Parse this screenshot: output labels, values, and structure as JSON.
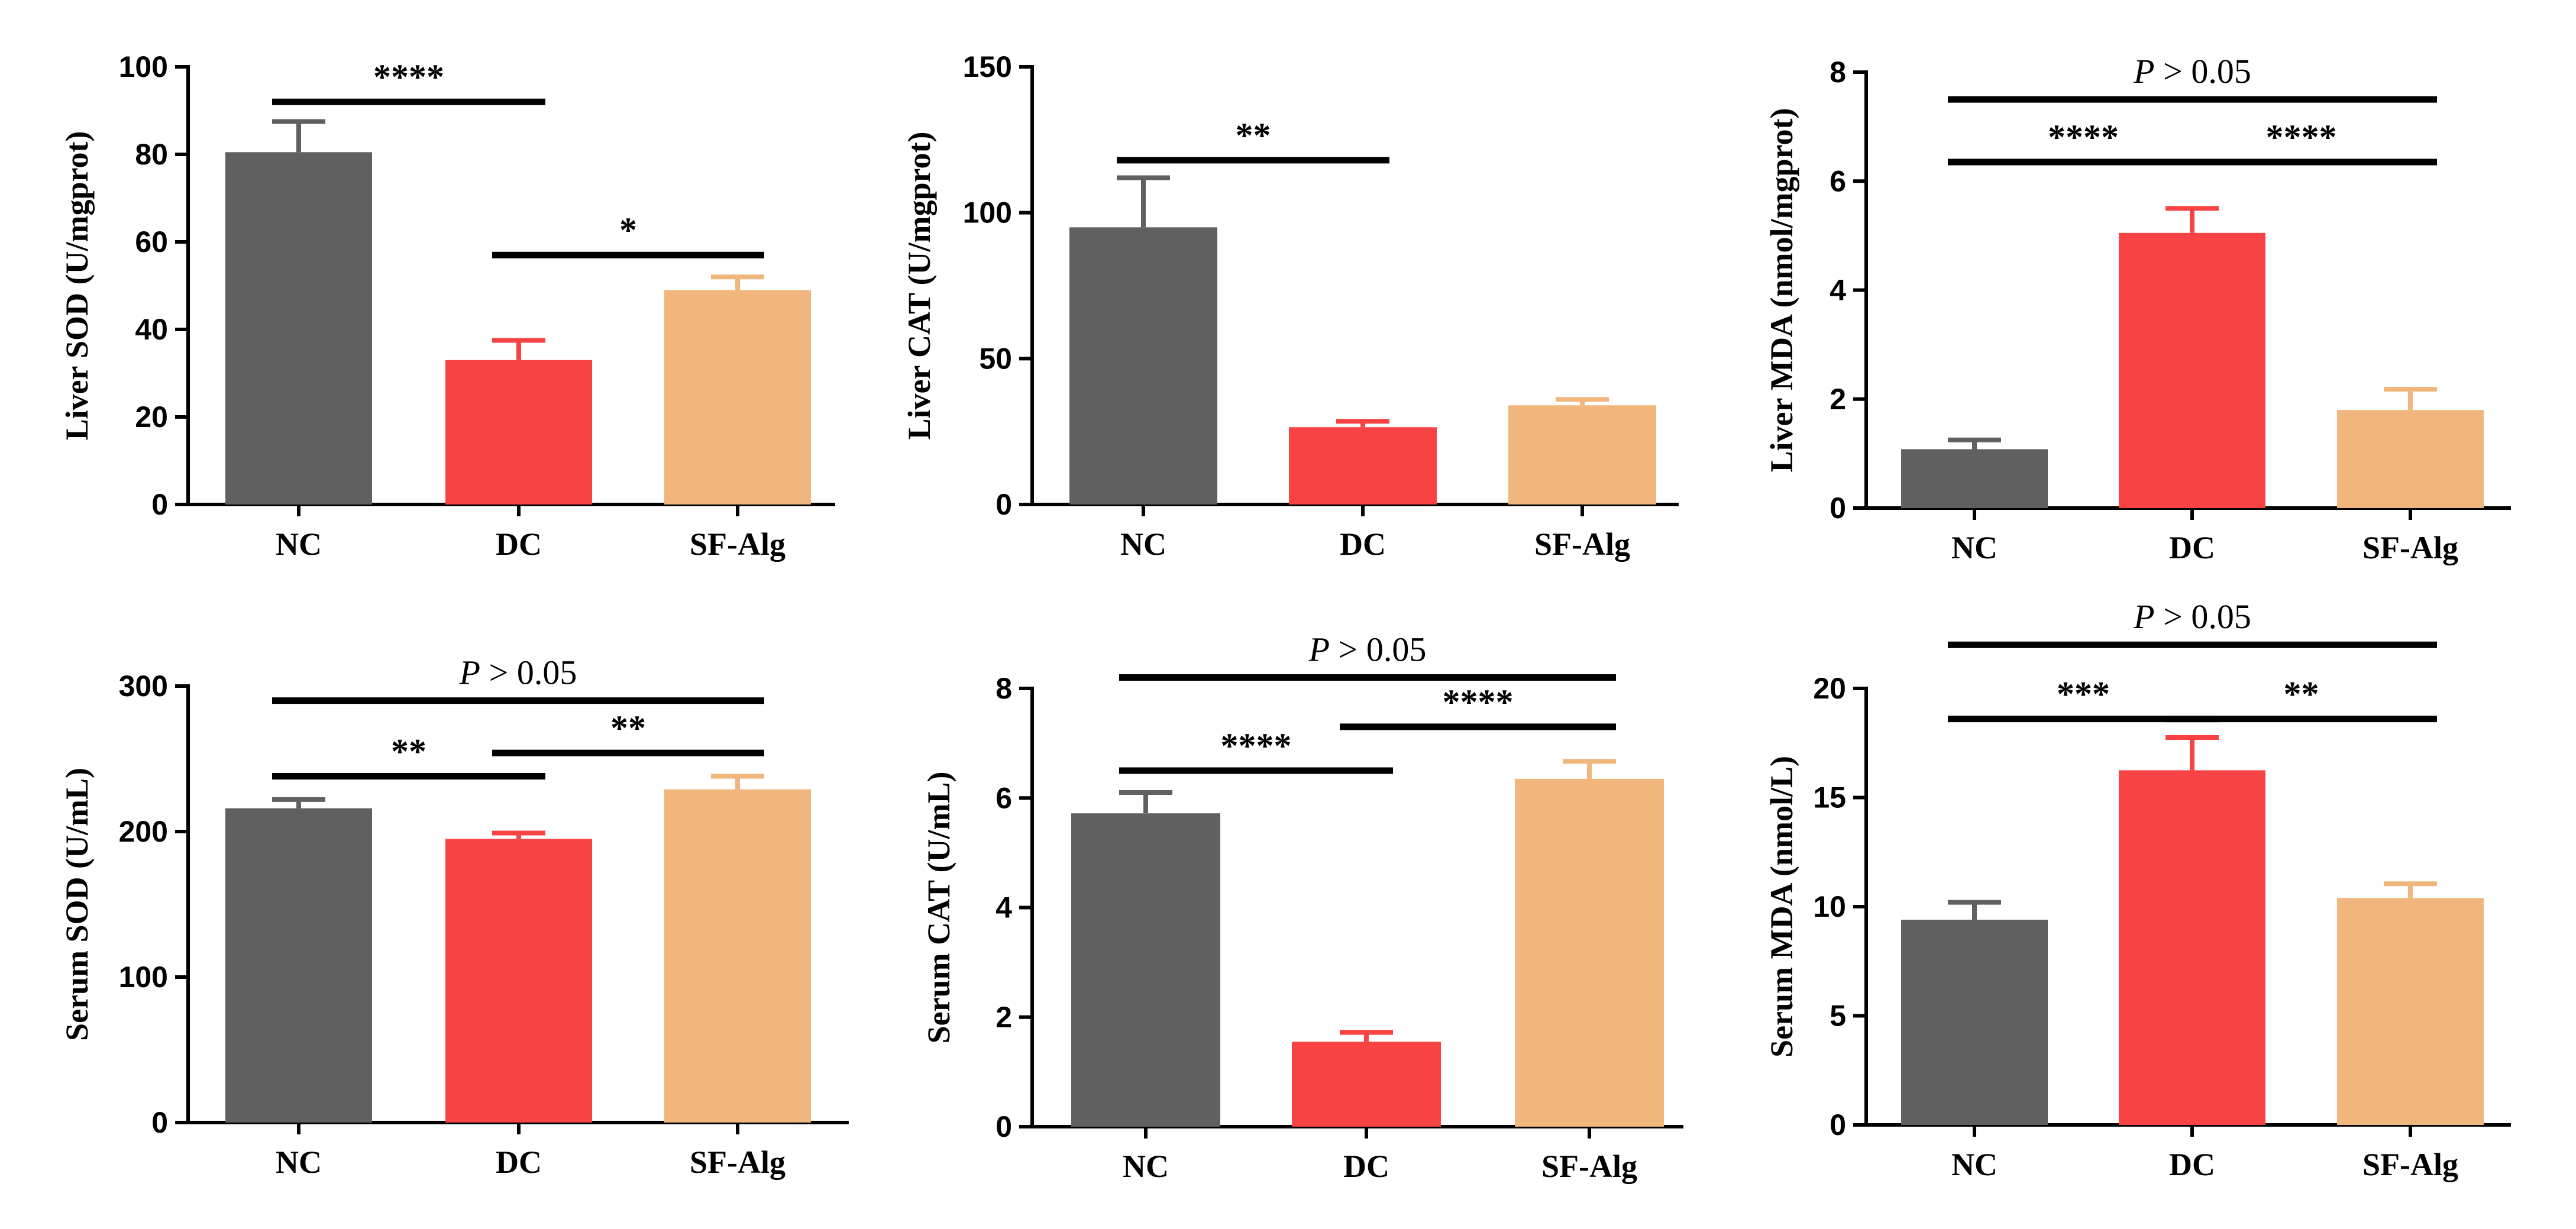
{
  "chart_data": [
    {
      "type": "bar",
      "panel": "liver-sod",
      "ylabel": "Liver SOD (U/mgprot)",
      "categories": [
        "NC",
        "DC",
        "SF-Alg"
      ],
      "values": [
        80.5,
        33,
        49
      ],
      "errors": [
        7,
        4.5,
        3
      ],
      "ylim": [
        0,
        100
      ],
      "yticks": [
        0,
        20,
        40,
        60,
        80,
        100
      ],
      "significance": [
        {
          "from": 0,
          "to": 1,
          "label": "****",
          "y": 92
        },
        {
          "from": 1,
          "to": 2,
          "label": "*",
          "y": 57
        }
      ]
    },
    {
      "type": "bar",
      "panel": "liver-cat",
      "ylabel": "Liver CAT (U/mgprot)",
      "categories": [
        "NC",
        "DC",
        "SF-Alg"
      ],
      "values": [
        95,
        26.5,
        34
      ],
      "errors": [
        17,
        2,
        2
      ],
      "ylim": [
        0,
        150
      ],
      "yticks": [
        0,
        50,
        100,
        150
      ],
      "significance": [
        {
          "from": 0,
          "to": 1,
          "label": "**",
          "y": 118
        }
      ]
    },
    {
      "type": "bar",
      "panel": "liver-mda",
      "ylabel": "Liver MDA (nmol/mgprot)",
      "categories": [
        "NC",
        "DC",
        "SF-Alg"
      ],
      "values": [
        1.08,
        5.05,
        1.8
      ],
      "errors": [
        0.17,
        0.45,
        0.38
      ],
      "ylim": [
        0,
        8
      ],
      "yticks": [
        0,
        2,
        4,
        6,
        8
      ],
      "significance": [
        {
          "from": 0,
          "to": 2,
          "label": "P > 0.05",
          "italic_prefix": "P",
          "y": 7.5
        },
        {
          "from": 0,
          "to": 1,
          "label": "****",
          "y": 6.35
        },
        {
          "from": 1,
          "to": 2,
          "label": "****",
          "y": 6.35
        }
      ]
    },
    {
      "type": "bar",
      "panel": "serum-sod",
      "ylabel": "Serum SOD (U/mL)",
      "categories": [
        "NC",
        "DC",
        "SF-Alg"
      ],
      "values": [
        216,
        195,
        229
      ],
      "errors": [
        6,
        4,
        9
      ],
      "ylim": [
        0,
        300
      ],
      "yticks": [
        0,
        100,
        200,
        300
      ],
      "significance": [
        {
          "from": 0,
          "to": 2,
          "label": "P > 0.05",
          "italic_prefix": "P",
          "y": 290
        },
        {
          "from": 0,
          "to": 1,
          "label": "**",
          "y": 238
        },
        {
          "from": 1,
          "to": 2,
          "label": "**",
          "y": 254
        }
      ]
    },
    {
      "type": "bar",
      "panel": "serum-cat",
      "ylabel": "Serum CAT (U/mL)",
      "categories": [
        "NC",
        "DC",
        "SF-Alg"
      ],
      "values": [
        5.72,
        1.55,
        6.35
      ],
      "errors": [
        0.38,
        0.17,
        0.32
      ],
      "ylim": [
        0,
        8
      ],
      "yticks": [
        0,
        2,
        4,
        6,
        8
      ],
      "significance": [
        {
          "from": 0,
          "to": 2,
          "label": "P > 0.05",
          "italic_prefix": "P",
          "y": 8.2
        },
        {
          "from": 0,
          "to": 1,
          "label": "****",
          "y": 6.5
        },
        {
          "from": 1,
          "to": 2,
          "label": "****",
          "y": 7.3
        }
      ]
    },
    {
      "type": "bar",
      "panel": "serum-mda",
      "ylabel": "Serum MDA (nmol/L)",
      "categories": [
        "NC",
        "DC",
        "SF-Alg"
      ],
      "values": [
        9.4,
        16.25,
        10.4
      ],
      "errors": [
        0.8,
        1.5,
        0.65
      ],
      "ylim": [
        0,
        20
      ],
      "yticks": [
        0,
        5,
        10,
        15,
        20
      ],
      "significance": [
        {
          "from": 0,
          "to": 2,
          "label": "P > 0.05",
          "italic_prefix": "P",
          "y": 22
        },
        {
          "from": 0,
          "to": 1,
          "label": "***",
          "y": 18.6
        },
        {
          "from": 1,
          "to": 2,
          "label": "**",
          "y": 18.6
        }
      ]
    }
  ],
  "colors": {
    "NC": "#606060",
    "DC": "#f74343",
    "SF-Alg": "#f0b67c"
  }
}
